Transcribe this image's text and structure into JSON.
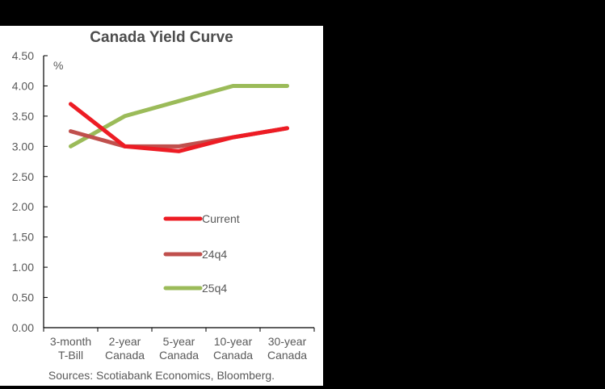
{
  "chart_data": {
    "type": "line",
    "title": "Canada Yield Curve",
    "ylabel": "%",
    "xlabel": "",
    "ylim": [
      0,
      4.5
    ],
    "yticks": [
      "0.00",
      "0.50",
      "1.00",
      "1.50",
      "2.00",
      "2.50",
      "3.00",
      "3.50",
      "4.00",
      "4.50"
    ],
    "categories": [
      [
        "3-month",
        "T-Bill"
      ],
      [
        "2-year",
        "Canada"
      ],
      [
        "5-year",
        "Canada"
      ],
      [
        "10-year",
        "Canada"
      ],
      [
        "30-year",
        "Canada"
      ]
    ],
    "series": [
      {
        "name": "Current",
        "color": "#ED1C24",
        "values": [
          3.7,
          3.0,
          2.92,
          3.15,
          3.3
        ]
      },
      {
        "name": "24q4",
        "color": "#C0504D",
        "values": [
          3.25,
          3.0,
          3.0,
          3.15,
          3.3
        ]
      },
      {
        "name": "25q4",
        "color": "#9BBB59",
        "values": [
          3.0,
          3.5,
          3.75,
          4.0,
          4.0
        ]
      }
    ],
    "legend_position": "inside-center",
    "grid": false,
    "source": "Sources: Scotiabank Economics, Bloomberg."
  }
}
